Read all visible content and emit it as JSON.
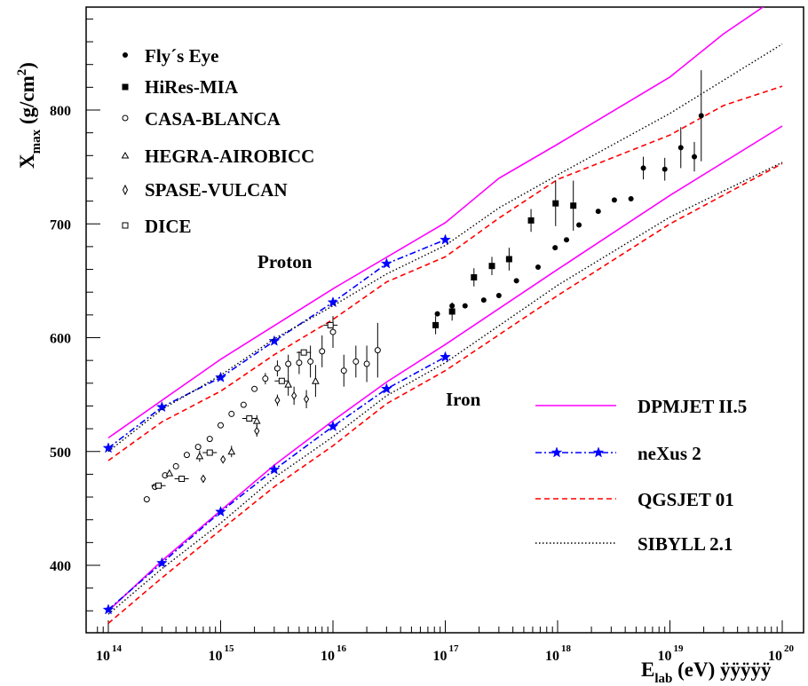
{
  "chart_data": {
    "type": "scatter",
    "xscale": "log",
    "xlim": [
      100000000000000.0,
      1e+20
    ],
    "ylim": [
      340,
      895
    ],
    "x_ticks": [
      {
        "base": "10",
        "exp": "14",
        "value": 100000000000000.0
      },
      {
        "base": "10",
        "exp": "15",
        "value": 1000000000000000.0
      },
      {
        "base": "10",
        "exp": "16",
        "value": 1e+16
      },
      {
        "base": "10",
        "exp": "17",
        "value": 1e+17
      },
      {
        "base": "10",
        "exp": "18",
        "value": 1e+18
      },
      {
        "base": "10",
        "exp": "19",
        "value": 1e+19
      },
      {
        "base": "10",
        "exp": "20",
        "value": 1e+20
      }
    ],
    "y_ticks": [
      "400",
      "500",
      "600",
      "700",
      "800"
    ],
    "ylabel": {
      "main": "X",
      "sub": "max",
      "rest": " (g/cm",
      "sup": "2",
      "close": ")"
    },
    "xlabel": {
      "main": "E",
      "sub": "lab",
      "rest": " (eV) ÿÿÿÿÿ"
    },
    "annotations": {
      "proton": "Proton",
      "iron": "Iron"
    },
    "experiments": [
      {
        "name": "Fly´s Eye",
        "marker": "filled-circle",
        "points": [
          [
            8.5e+16,
            621
          ],
          [
            1.15e+17,
            628
          ],
          [
            1.5e+17,
            628
          ],
          [
            2.2e+17,
            633
          ],
          [
            3e+17,
            637
          ],
          [
            4.3e+17,
            650
          ],
          [
            6.7e+17,
            662
          ],
          [
            9.5e+17,
            679
          ],
          [
            1.2e+18,
            686
          ],
          [
            1.55e+18,
            699
          ],
          [
            2.3e+18,
            711
          ],
          [
            3.2e+18,
            721
          ],
          [
            4.5e+18,
            722
          ],
          [
            5.8e+18,
            749
          ],
          [
            9e+18,
            748
          ],
          [
            1.25e+19,
            767
          ],
          [
            1.65e+19,
            759
          ],
          [
            1.9e+19,
            795
          ]
        ],
        "errors": [
          0,
          0,
          0,
          0,
          0,
          0,
          0,
          0,
          0,
          0,
          0,
          0,
          0,
          10,
          10,
          18,
          13,
          40
        ]
      },
      {
        "name": "HiRes-MIA",
        "marker": "filled-square",
        "points": [
          [
            8.2e+16,
            611
          ],
          [
            1.15e+17,
            623
          ],
          [
            1.8e+17,
            653
          ],
          [
            2.6e+17,
            663
          ],
          [
            3.7e+17,
            669
          ],
          [
            5.8e+17,
            703
          ],
          [
            9.6e+17,
            718
          ],
          [
            1.38e+18,
            716
          ]
        ],
        "errors": [
          8,
          8,
          8,
          8,
          10,
          10,
          20,
          22
        ]
      },
      {
        "name": "CASA-BLANCA",
        "marker": "open-circle",
        "points": [
          [
            220000000000000.0,
            458
          ],
          [
            260000000000000.0,
            469
          ],
          [
            320000000000000.0,
            479
          ],
          [
            400000000000000.0,
            487
          ],
          [
            500000000000000.0,
            497
          ],
          [
            630000000000000.0,
            504
          ],
          [
            800000000000000.0,
            511
          ],
          [
            1000000000000000.0,
            523
          ],
          [
            1250000000000000.0,
            533
          ],
          [
            1600000000000000.0,
            541
          ],
          [
            2000000000000000.0,
            555
          ],
          [
            2500000000000000.0,
            564
          ],
          [
            3200000000000000.0,
            573
          ],
          [
            4000000000000000.0,
            577
          ],
          [
            5000000000000000.0,
            578
          ],
          [
            6300000000000000.0,
            579
          ],
          [
            8000000000000000.0,
            588
          ],
          [
            1e+16,
            605
          ],
          [
            1.25e+16,
            571
          ],
          [
            1.6e+16,
            579
          ],
          [
            2e+16,
            577
          ],
          [
            2.5e+16,
            589
          ]
        ],
        "errors": [
          0,
          0,
          0,
          0,
          0,
          0,
          0,
          0,
          0,
          0,
          0,
          5,
          7,
          8,
          10,
          14,
          14,
          14,
          14,
          14,
          16,
          24
        ]
      },
      {
        "name": "HEGRA-AIROBICC",
        "marker": "open-triangle",
        "points": [
          [
            350000000000000.0,
            481
          ],
          [
            650000000000000.0,
            496
          ],
          [
            1250000000000000.0,
            500
          ],
          [
            2100000000000000.0,
            527
          ],
          [
            4000000000000000.0,
            559
          ],
          [
            7000000000000000.0,
            562
          ]
        ],
        "errors": [
          0,
          5,
          5,
          5,
          10,
          14
        ]
      },
      {
        "name": "SPASE-VULCAN",
        "marker": "open-diamond",
        "points": [
          [
            700000000000000.0,
            476
          ],
          [
            1050000000000000.0,
            493
          ],
          [
            2100000000000000.0,
            518
          ],
          [
            3200000000000000.0,
            545
          ],
          [
            4500000000000000.0,
            549
          ],
          [
            5800000000000000.0,
            546
          ]
        ],
        "errors": [
          0,
          0,
          5,
          5,
          8,
          8
        ]
      },
      {
        "name": "DICE",
        "marker": "open-square",
        "points": [
          [
            280000000000000.0,
            470
          ],
          [
            450000000000000.0,
            476
          ],
          [
            800000000000000.0,
            499
          ],
          [
            1800000000000000.0,
            529
          ],
          [
            3500000000000000.0,
            562
          ],
          [
            5500000000000000.0,
            587
          ],
          [
            9500000000000000.0,
            611
          ]
        ],
        "errors": [
          0,
          0,
          0,
          0,
          0,
          0,
          0
        ]
      }
    ],
    "models": [
      {
        "name": "DPMJET II.5",
        "color": "#ff00ff",
        "dash": "solid",
        "proton": [
          [
            100000000000000.0,
            512
          ],
          [
            1000000000000000.0,
            581
          ],
          [
            1e+16,
            643
          ],
          [
            1e+17,
            701
          ],
          [
            3e+17,
            740
          ],
          [
            1e+18,
            770
          ],
          [
            1e+19,
            829
          ],
          [
            3e+19,
            867
          ],
          [
            1e+20,
            902
          ]
        ],
        "iron": [
          [
            100000000000000.0,
            360
          ],
          [
            300000000000000.0,
            404
          ],
          [
            1000000000000000.0,
            448
          ],
          [
            3000000000000000.0,
            488
          ],
          [
            1e+16,
            527
          ],
          [
            3e+16,
            561
          ],
          [
            1e+17,
            594
          ],
          [
            1e+18,
            660
          ],
          [
            1e+19,
            725
          ],
          [
            1e+20,
            786
          ]
        ]
      },
      {
        "name": "neXus 2",
        "color": "#0000ff",
        "dash": "dash-dot",
        "marker": "star",
        "proton": [
          [
            100000000000000.0,
            503
          ],
          [
            300000000000000.0,
            539
          ],
          [
            1000000000000000.0,
            565
          ],
          [
            3000000000000000.0,
            597
          ],
          [
            1e+16,
            631
          ],
          [
            3e+16,
            665
          ],
          [
            1e+17,
            686
          ]
        ],
        "iron": [
          [
            100000000000000.0,
            361
          ],
          [
            300000000000000.0,
            402
          ],
          [
            1000000000000000.0,
            447
          ],
          [
            3000000000000000.0,
            484
          ],
          [
            1e+16,
            522
          ],
          [
            3e+16,
            555
          ],
          [
            1e+17,
            583
          ]
        ]
      },
      {
        "name": "QGSJET 01",
        "color": "#ff0000",
        "dash": "dashed",
        "proton": [
          [
            100000000000000.0,
            492
          ],
          [
            300000000000000.0,
            526
          ],
          [
            1000000000000000.0,
            553
          ],
          [
            3000000000000000.0,
            585
          ],
          [
            1e+16,
            616
          ],
          [
            3e+16,
            649
          ],
          [
            1e+17,
            671
          ],
          [
            3e+17,
            705
          ],
          [
            1e+18,
            739
          ],
          [
            1e+19,
            778
          ],
          [
            3e+19,
            804
          ],
          [
            1e+20,
            821
          ]
        ],
        "iron": [
          [
            100000000000000.0,
            349
          ],
          [
            300000000000000.0,
            389
          ],
          [
            1000000000000000.0,
            431
          ],
          [
            3000000000000000.0,
            469
          ],
          [
            1e+16,
            505
          ],
          [
            3e+16,
            542
          ],
          [
            1e+17,
            571
          ],
          [
            1e+18,
            637
          ],
          [
            1e+19,
            700
          ],
          [
            1e+20,
            753
          ]
        ]
      },
      {
        "name": "SIBYLL 2.1",
        "color": "#000000",
        "dash": "dotted",
        "proton": [
          [
            100000000000000.0,
            500
          ],
          [
            300000000000000.0,
            537
          ],
          [
            1000000000000000.0,
            567
          ],
          [
            3000000000000000.0,
            599
          ],
          [
            1e+16,
            628
          ],
          [
            3e+16,
            656
          ],
          [
            1e+17,
            681
          ],
          [
            3e+17,
            714
          ],
          [
            1e+18,
            743
          ],
          [
            1e+19,
            797
          ],
          [
            1e+20,
            858
          ]
        ],
        "iron": [
          [
            100000000000000.0,
            357
          ],
          [
            300000000000000.0,
            397
          ],
          [
            1000000000000000.0,
            437
          ],
          [
            3000000000000000.0,
            477
          ],
          [
            1e+16,
            513
          ],
          [
            3e+16,
            549
          ],
          [
            1e+17,
            578
          ],
          [
            1e+18,
            646
          ],
          [
            1e+19,
            706
          ],
          [
            1e+20,
            754
          ]
        ]
      }
    ]
  }
}
